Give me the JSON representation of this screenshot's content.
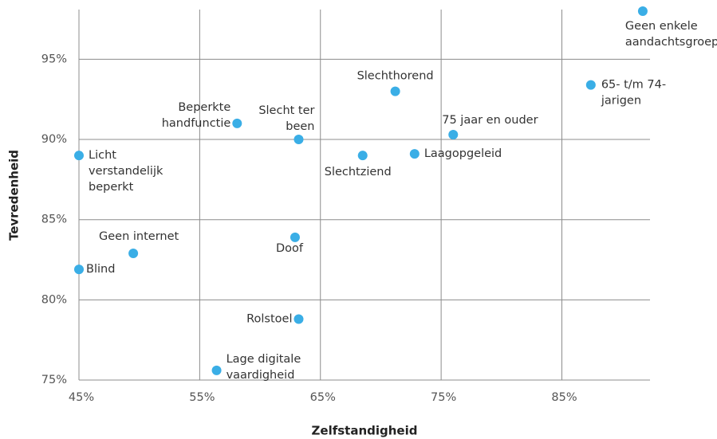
{
  "chart_data": {
    "type": "scatter",
    "x_label": "Zelfstandigheid",
    "y_label": "Tevredenheid",
    "color": "#3aaee6",
    "grid": true,
    "xlim": [
      45,
      92.3
    ],
    "ylim": [
      75,
      98.1
    ],
    "xticks": [
      {
        "value": 45,
        "label": "45%"
      },
      {
        "value": 55,
        "label": "55%"
      },
      {
        "value": 65,
        "label": "65%"
      },
      {
        "value": 75,
        "label": "75%"
      },
      {
        "value": 85,
        "label": "85%"
      }
    ],
    "yticks": [
      {
        "value": 75,
        "label": "75%"
      },
      {
        "value": 80,
        "label": "80%"
      },
      {
        "value": 85,
        "label": "85%"
      },
      {
        "value": 90,
        "label": "90%"
      },
      {
        "value": 95,
        "label": "95%"
      }
    ],
    "labels": [
      [
        "Geen enkele",
        "aandachtsgroep"
      ],
      [
        "65- t/m 74-",
        "jarigen"
      ],
      [
        "Slechthorend"
      ],
      [
        "75 jaar en ouder"
      ],
      [
        "Beperkte",
        "handfunctie"
      ],
      [
        "Slecht ter",
        "been"
      ],
      [
        "Slechtziend"
      ],
      [
        "Laagopgeleid"
      ],
      [
        "Licht",
        "verstandelijk",
        "beperkt"
      ],
      [
        "Geen internet"
      ],
      [
        "Doof"
      ],
      [
        "Blind"
      ],
      [
        "Rolstoel"
      ],
      [
        "Lage digitale",
        "vaardigheid"
      ]
    ],
    "x": [
      91.7,
      87.4,
      71.2,
      76.0,
      58.1,
      63.2,
      68.5,
      72.8,
      45.0,
      49.5,
      62.9,
      45.0,
      63.2,
      56.4
    ],
    "y": [
      98.0,
      93.4,
      93.0,
      90.3,
      91.0,
      90.0,
      89.0,
      89.1,
      89.0,
      82.9,
      83.9,
      81.9,
      78.8,
      75.6
    ]
  }
}
